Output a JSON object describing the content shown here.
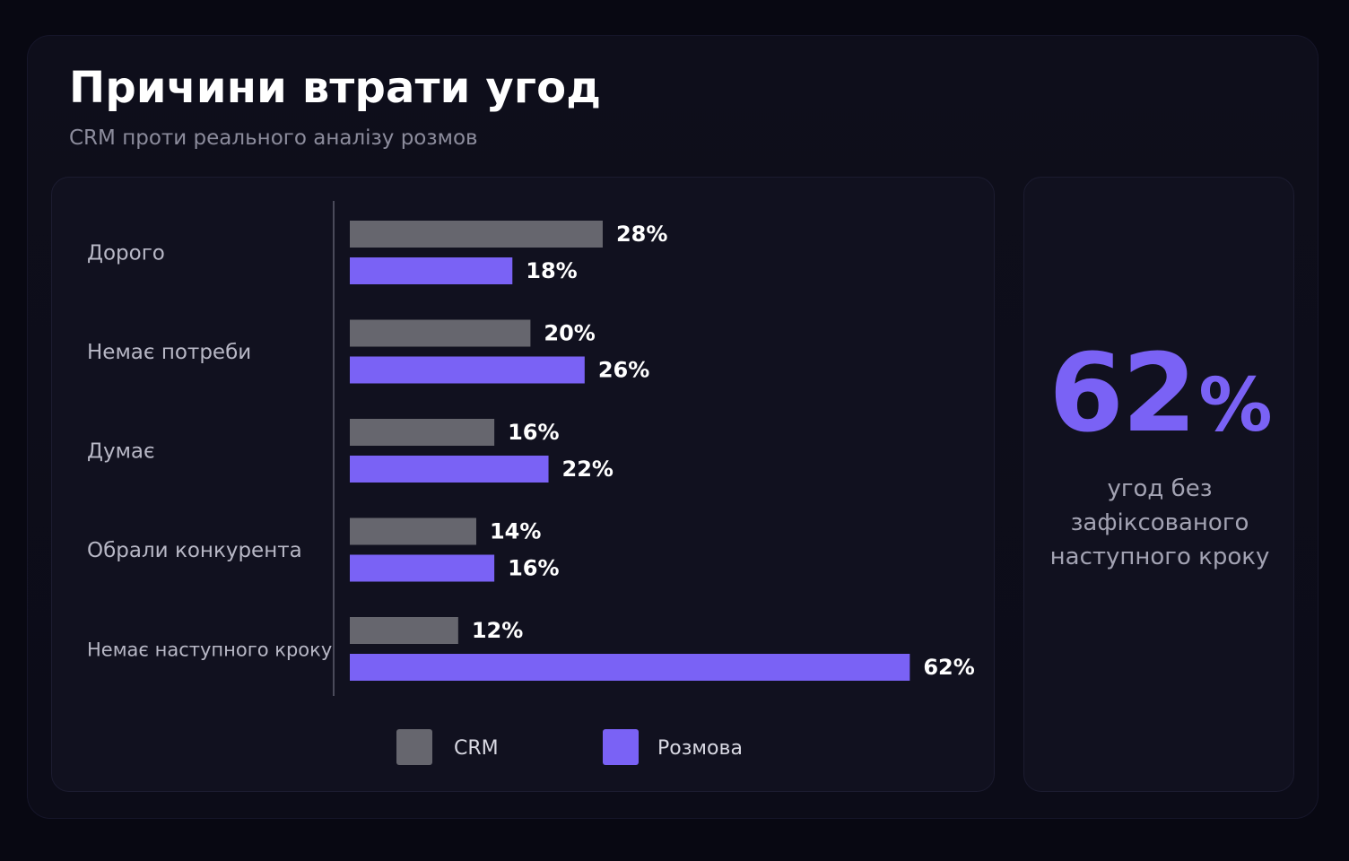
{
  "header": {
    "title": "Причини втрати угод",
    "subtitle": "CRM проти реального аналізу розмов"
  },
  "colors": {
    "crm": "#66666e",
    "conversation": "#7a62f5",
    "category_label": "#b8b8c6",
    "value_label": "#ffffff",
    "axis_line": "#4a4a5a"
  },
  "chart_data": {
    "type": "bar",
    "orientation": "horizontal",
    "categories": [
      "Дорого",
      "Немає потреби",
      "Думає",
      "Обрали конкурента",
      "Немає наступного кроку"
    ],
    "series": [
      {
        "name": "CRM",
        "values": [
          28,
          20,
          16,
          14,
          12
        ]
      },
      {
        "name": "Розмова",
        "values": [
          18,
          26,
          22,
          16,
          62
        ]
      }
    ],
    "value_labels": [
      [
        "28%",
        "20%",
        "16%",
        "14%",
        "12%"
      ],
      [
        "18%",
        "26%",
        "22%",
        "16%",
        "62%"
      ]
    ],
    "unit": "%",
    "xlim": [
      0,
      62
    ],
    "grid": false,
    "legend": "bottom"
  },
  "kpi": {
    "value": "62",
    "unit": "%",
    "caption_lines": [
      "угод без",
      "зафіксованого",
      "наступного кроку"
    ]
  }
}
